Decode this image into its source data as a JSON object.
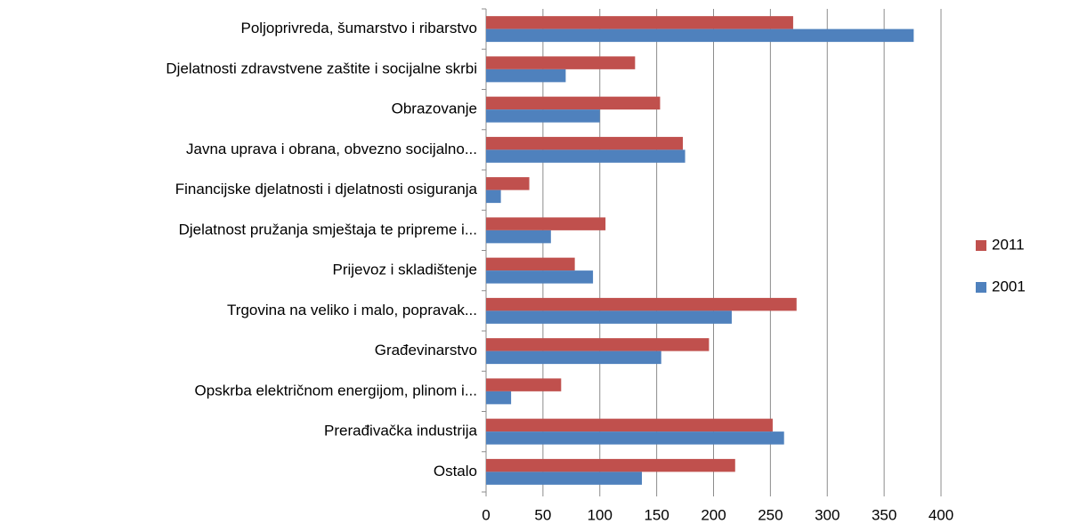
{
  "chart_data": {
    "type": "hbar",
    "categories": [
      "Poljoprivreda, šumarstvo i ribarstvo",
      "Djelatnosti zdravstvene zaštite i socijalne skrbi",
      "Obrazovanje",
      "Javna uprava i obrana, obvezno socijalno...",
      "Financijske djelatnosti i djelatnosti osiguranja",
      "Djelatnost pružanja smještaja te pripreme i...",
      "Prijevoz i skladištenje",
      "Trgovina na veliko i malo, popravak...",
      "Građevinarstvo",
      "Opskrba električnom energijom, plinom i...",
      "Prerađivačka industrija",
      "Ostalo"
    ],
    "series": [
      {
        "name": "2011",
        "color": "#c0504d",
        "values": [
          270,
          131,
          153,
          173,
          38,
          105,
          78,
          273,
          196,
          66,
          252,
          219
        ]
      },
      {
        "name": "2001",
        "color": "#4f81bd",
        "values": [
          376,
          70,
          100,
          175,
          13,
          57,
          94,
          216,
          154,
          22,
          262,
          137
        ]
      }
    ],
    "xlim": [
      0,
      400
    ],
    "xticks": [
      0,
      50,
      100,
      150,
      200,
      250,
      300,
      350,
      400
    ],
    "grid": true,
    "legend": "right"
  }
}
